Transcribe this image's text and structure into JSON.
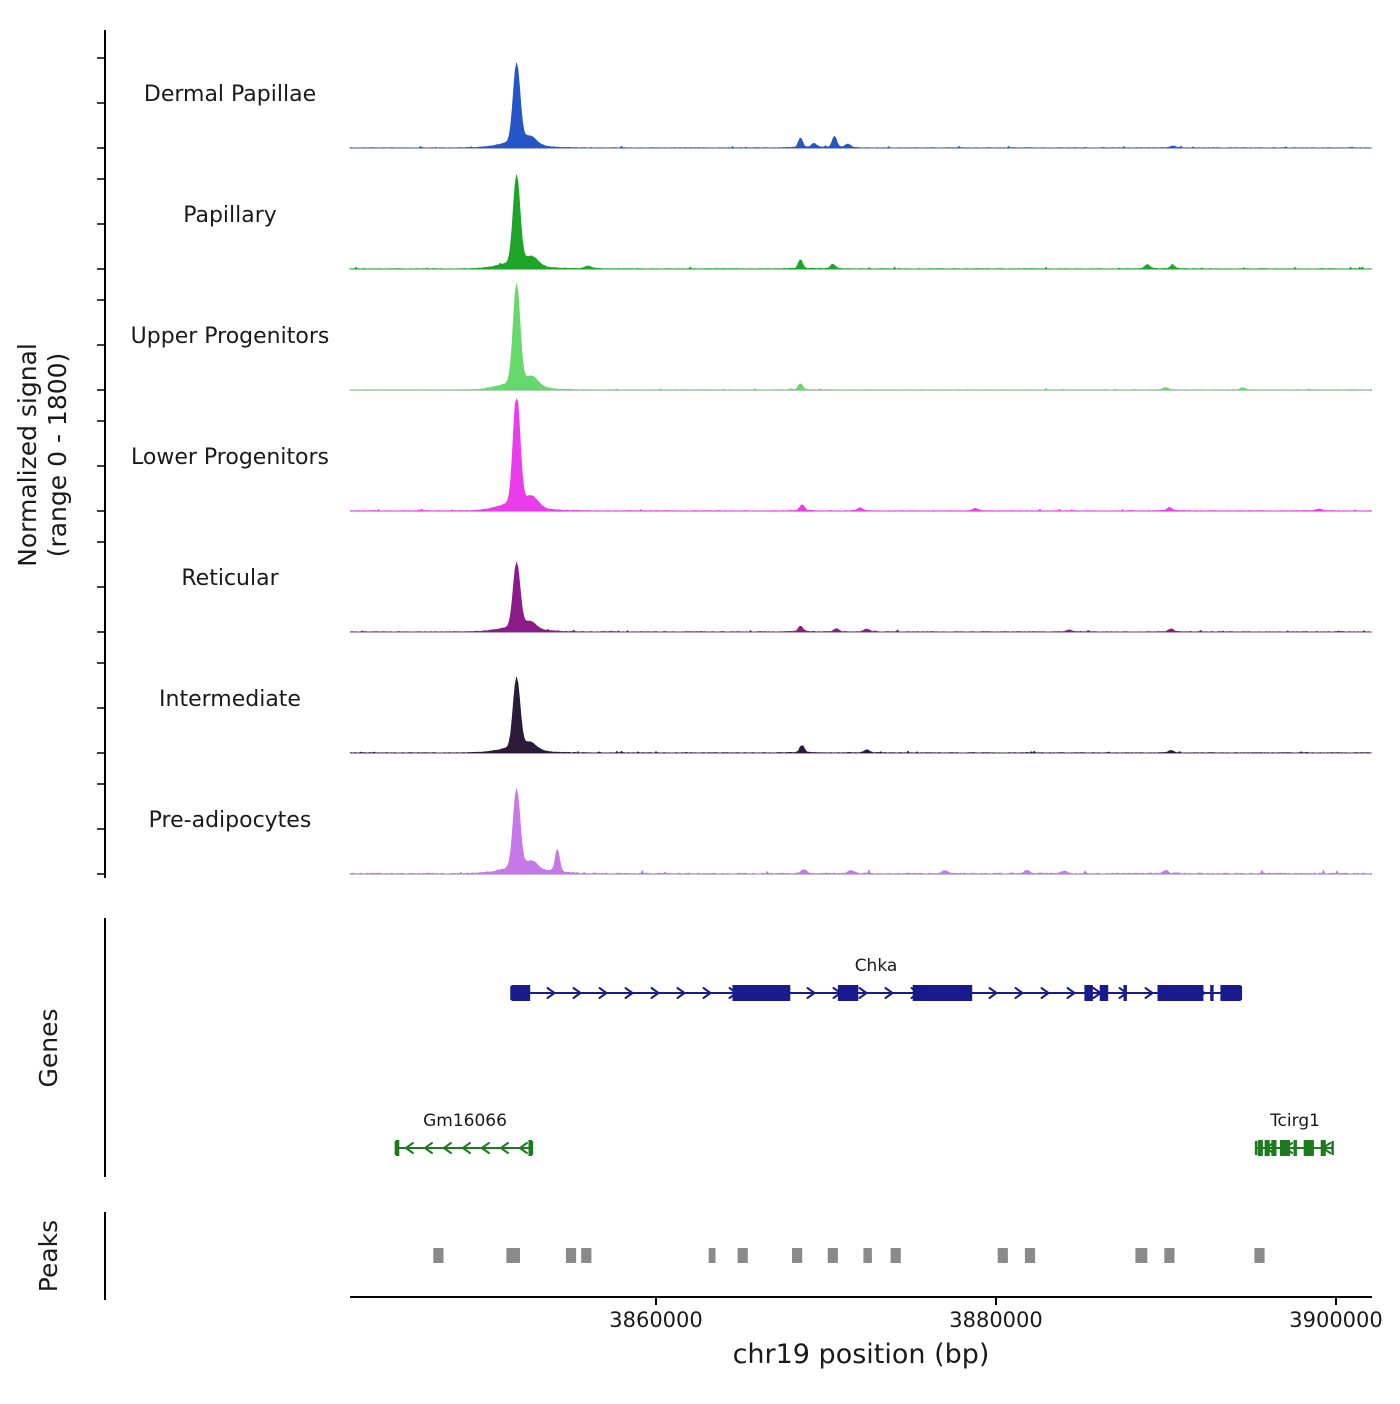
{
  "figure": {
    "y_axis_label_line1": "Normalized signal",
    "y_axis_label_line2": "(range 0 - 1800)",
    "genes_section_label": "Genes",
    "peaks_section_label": "Peaks",
    "x_axis_label": "chr19 position (bp)"
  },
  "chart_data": {
    "type": "area",
    "title": "",
    "xlabel": "chr19 position (bp)",
    "ylabel": "Normalized signal (range 0 - 1800)",
    "chromosome": "chr19",
    "x_domain_bp": [
      3842000,
      3902000
    ],
    "signal_range": [
      0,
      1800
    ],
    "grid": false,
    "x_ticks": [
      {
        "value": 3860000,
        "label": "3860000"
      },
      {
        "value": 3880000,
        "label": "3880000"
      },
      {
        "value": 3900000,
        "label": "3900000"
      }
    ],
    "tracks": [
      {
        "name": "Dermal Papillae",
        "color": "#2456c8",
        "noise": 1.0,
        "peaks": [
          {
            "pos": 3851800,
            "value": 1260,
            "sigma": 200
          },
          {
            "pos": 3852600,
            "value": 120,
            "sigma": 350
          },
          {
            "pos": 3868500,
            "value": 150,
            "sigma": 120
          },
          {
            "pos": 3869300,
            "value": 60,
            "sigma": 150
          },
          {
            "pos": 3870500,
            "value": 170,
            "sigma": 130
          },
          {
            "pos": 3871300,
            "value": 50,
            "sigma": 150
          },
          {
            "pos": 3890400,
            "value": 30,
            "sigma": 150
          }
        ]
      },
      {
        "name": "Papillary",
        "color": "#1ea428",
        "noise": 1.1,
        "peaks": [
          {
            "pos": 3851800,
            "value": 1400,
            "sigma": 200
          },
          {
            "pos": 3852700,
            "value": 130,
            "sigma": 350
          },
          {
            "pos": 3856000,
            "value": 40,
            "sigma": 200
          },
          {
            "pos": 3868500,
            "value": 140,
            "sigma": 120
          },
          {
            "pos": 3870400,
            "value": 70,
            "sigma": 140
          },
          {
            "pos": 3888900,
            "value": 60,
            "sigma": 160
          },
          {
            "pos": 3890400,
            "value": 50,
            "sigma": 140
          }
        ]
      },
      {
        "name": "Upper Progenitors",
        "color": "#66d96d",
        "noise": 1.0,
        "peaks": [
          {
            "pos": 3851800,
            "value": 1580,
            "sigma": 200
          },
          {
            "pos": 3852700,
            "value": 140,
            "sigma": 350
          },
          {
            "pos": 3868500,
            "value": 90,
            "sigma": 130
          },
          {
            "pos": 3890000,
            "value": 35,
            "sigma": 150
          },
          {
            "pos": 3894500,
            "value": 30,
            "sigma": 150
          }
        ]
      },
      {
        "name": "Lower Progenitors",
        "color": "#ea3cea",
        "noise": 1.1,
        "peaks": [
          {
            "pos": 3851800,
            "value": 1750,
            "sigma": 200
          },
          {
            "pos": 3852700,
            "value": 150,
            "sigma": 350
          },
          {
            "pos": 3868600,
            "value": 90,
            "sigma": 130
          },
          {
            "pos": 3872000,
            "value": 45,
            "sigma": 150
          },
          {
            "pos": 3878800,
            "value": 35,
            "sigma": 150
          },
          {
            "pos": 3890200,
            "value": 50,
            "sigma": 140
          },
          {
            "pos": 3899000,
            "value": 30,
            "sigma": 150
          }
        ]
      },
      {
        "name": "Reticular",
        "color": "#8c1a88",
        "noise": 1.2,
        "peaks": [
          {
            "pos": 3851800,
            "value": 1030,
            "sigma": 200
          },
          {
            "pos": 3852600,
            "value": 110,
            "sigma": 350
          },
          {
            "pos": 3868500,
            "value": 90,
            "sigma": 130
          },
          {
            "pos": 3870600,
            "value": 45,
            "sigma": 140
          },
          {
            "pos": 3872400,
            "value": 40,
            "sigma": 150
          },
          {
            "pos": 3884300,
            "value": 30,
            "sigma": 150
          },
          {
            "pos": 3890300,
            "value": 45,
            "sigma": 140
          }
        ]
      },
      {
        "name": "Intermediate",
        "color": "#2b1b38",
        "noise": 1.1,
        "peaks": [
          {
            "pos": 3851800,
            "value": 1120,
            "sigma": 200
          },
          {
            "pos": 3852600,
            "value": 110,
            "sigma": 350
          },
          {
            "pos": 3868600,
            "value": 110,
            "sigma": 130
          },
          {
            "pos": 3872400,
            "value": 45,
            "sigma": 150
          },
          {
            "pos": 3890300,
            "value": 35,
            "sigma": 140
          }
        ]
      },
      {
        "name": "Pre-adipocytes",
        "color": "#c678e8",
        "noise": 2.2,
        "peaks": [
          {
            "pos": 3851800,
            "value": 1260,
            "sigma": 200
          },
          {
            "pos": 3852700,
            "value": 140,
            "sigma": 350
          },
          {
            "pos": 3854200,
            "value": 350,
            "sigma": 130
          },
          {
            "pos": 3868700,
            "value": 60,
            "sigma": 150
          },
          {
            "pos": 3871500,
            "value": 50,
            "sigma": 150
          },
          {
            "pos": 3877000,
            "value": 45,
            "sigma": 150
          },
          {
            "pos": 3881800,
            "value": 45,
            "sigma": 150
          },
          {
            "pos": 3884000,
            "value": 35,
            "sigma": 150
          },
          {
            "pos": 3890000,
            "value": 45,
            "sigma": 150
          }
        ]
      }
    ],
    "genes": [
      {
        "name": "Chka",
        "strand": "+",
        "color": "#1a1a8f",
        "start": 3851500,
        "end": 3894400,
        "exons": [
          [
            3851500,
            3852600
          ],
          [
            3864500,
            3867900
          ],
          [
            3870700,
            3871900
          ],
          [
            3875100,
            3878600
          ],
          [
            3885200,
            3885700
          ],
          [
            3886100,
            3886600
          ],
          [
            3887500,
            3887700
          ],
          [
            3889500,
            3892200
          ],
          [
            3892600,
            3892800
          ],
          [
            3893200,
            3894400
          ]
        ]
      },
      {
        "name": "Gm16066",
        "strand": "-",
        "color": "#1d7a1d",
        "start": 3844700,
        "end": 3852700,
        "exons": [
          [
            3844700,
            3844900
          ],
          [
            3852500,
            3852700
          ]
        ]
      },
      {
        "name": "Tcirg1",
        "strand": "-",
        "color": "#1d7a1d",
        "start": 3895300,
        "end": 3899800,
        "exons": [
          [
            3895400,
            3895700
          ],
          [
            3895800,
            3896100
          ],
          [
            3896200,
            3896500
          ],
          [
            3896700,
            3897300
          ],
          [
            3897500,
            3897700
          ],
          [
            3898100,
            3898700
          ],
          [
            3899100,
            3899400
          ]
        ]
      }
    ],
    "peaks_track": {
      "color": "#8a8a8a",
      "intervals": [
        [
          3846900,
          3847500
        ],
        [
          3851200,
          3852000
        ],
        [
          3854700,
          3855300
        ],
        [
          3855600,
          3856200
        ],
        [
          3863100,
          3863500
        ],
        [
          3864800,
          3865400
        ],
        [
          3868000,
          3868600
        ],
        [
          3870100,
          3870700
        ],
        [
          3872200,
          3872700
        ],
        [
          3873800,
          3874400
        ],
        [
          3880100,
          3880700
        ],
        [
          3881700,
          3882300
        ],
        [
          3888200,
          3888900
        ],
        [
          3889900,
          3890500
        ],
        [
          3895200,
          3895800
        ]
      ]
    }
  }
}
